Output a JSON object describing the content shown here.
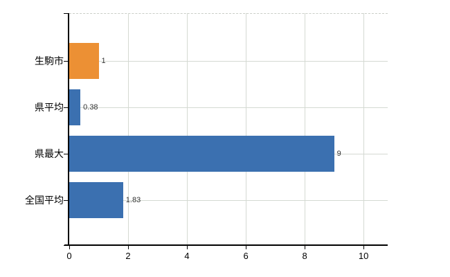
{
  "chart_data": {
    "type": "bar",
    "orientation": "horizontal",
    "title": "",
    "xlabel": "",
    "ylabel": "",
    "categories": [
      "生駒市",
      "県平均",
      "県最大",
      "全国平均"
    ],
    "values": [
      1,
      0.38,
      9,
      1.83
    ],
    "value_labels": [
      "1",
      "0.38",
      "9",
      "1.83"
    ],
    "bar_colors": [
      "#EC9034",
      "#3B70B0",
      "#3B70B0",
      "#3B70B0"
    ],
    "x_ticks": [
      0,
      2,
      4,
      6,
      8,
      10
    ],
    "x_tick_labels": [
      "0",
      "2",
      "4",
      "6",
      "8",
      "10"
    ],
    "xlim": [
      0,
      10.82
    ],
    "grid": true,
    "legend": null,
    "colors": {
      "highlight_bar": "#EC9034",
      "default_bar": "#3B70B0",
      "gridline": "#d4d9d2",
      "axis": "#000000",
      "value_label_text": "#333333",
      "tick_label_text": "#000000",
      "background": "#ffffff"
    }
  }
}
